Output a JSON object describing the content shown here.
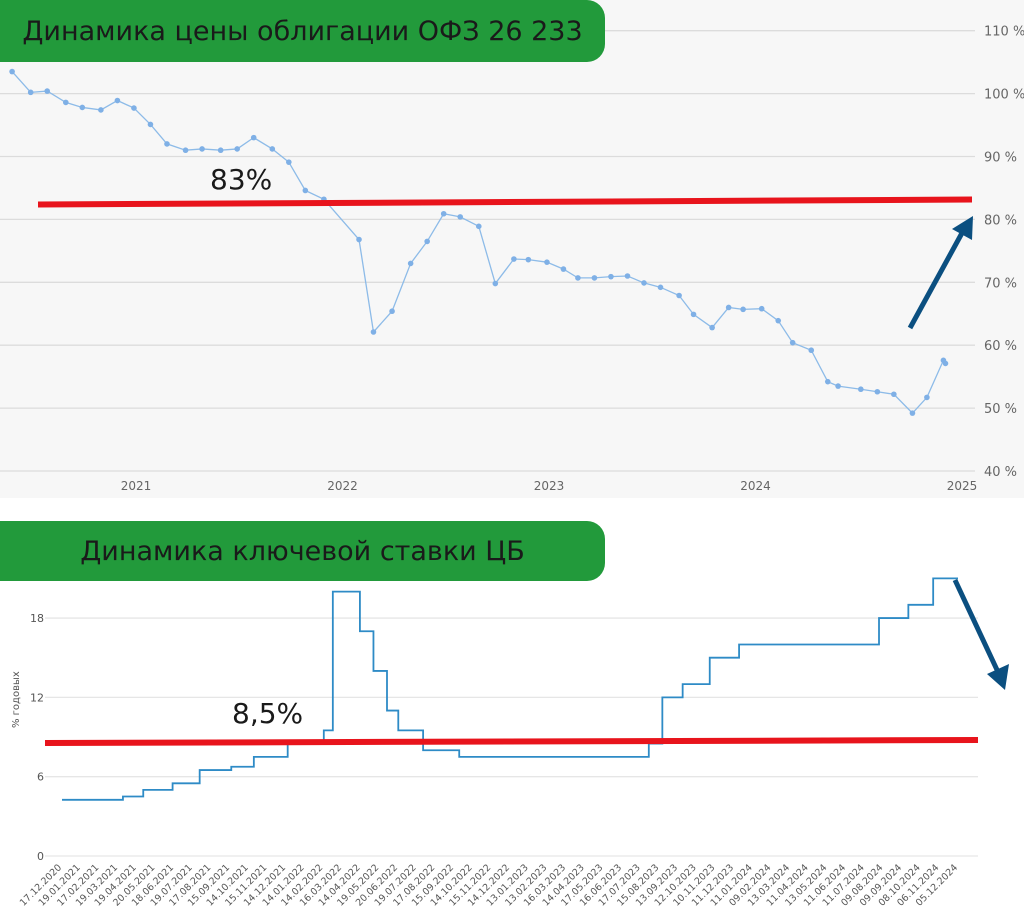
{
  "chart_data": [
    {
      "type": "line",
      "title": "Динамика цены облигации ОФЗ 26 233",
      "xlabel": "",
      "ylabel": "",
      "x_ticks": [
        "2021",
        "2022",
        "2023",
        "2024",
        "2025"
      ],
      "y_ticks": [
        "40 %",
        "50 %",
        "60 %",
        "70 %",
        "80 %",
        "90 %",
        "100 %",
        "110 %"
      ],
      "xlim": [
        2020.35,
        2025.2
      ],
      "ylim": [
        40,
        110
      ],
      "grid": true,
      "series": [
        {
          "name": "price",
          "x": [
            2020.4,
            2020.49,
            2020.57,
            2020.66,
            2020.74,
            2020.83,
            2020.91,
            2020.99,
            2021.07,
            2021.15,
            2021.24,
            2021.32,
            2021.41,
            2021.49,
            2021.57,
            2021.66,
            2021.74,
            2021.82,
            2021.91,
            2022.08,
            2022.15,
            2022.24,
            2022.33,
            2022.41,
            2022.49,
            2022.57,
            2022.66,
            2022.74,
            2022.83,
            2022.9,
            2022.99,
            2023.07,
            2023.14,
            2023.22,
            2023.3,
            2023.38,
            2023.46,
            2023.54,
            2023.63,
            2023.7,
            2023.79,
            2023.87,
            2023.94,
            2024.03,
            2024.11,
            2024.18,
            2024.27,
            2024.35,
            2024.4,
            2024.51,
            2024.59,
            2024.67,
            2024.76,
            2024.83,
            2024.91,
            2024.92
          ],
          "y": [
            103.5,
            100.2,
            100.4,
            98.6,
            97.8,
            97.4,
            98.9,
            97.7,
            95.1,
            92.0,
            91.0,
            91.2,
            91.0,
            91.2,
            93.0,
            91.2,
            89.1,
            84.6,
            83.2,
            76.8,
            62.1,
            65.4,
            73.0,
            76.5,
            80.9,
            80.4,
            78.9,
            69.8,
            73.7,
            73.6,
            73.2,
            72.1,
            70.7,
            70.7,
            70.9,
            71.0,
            69.9,
            69.2,
            67.9,
            64.9,
            62.8,
            66.0,
            65.7,
            65.8,
            63.9,
            60.4,
            59.2,
            54.2,
            53.5,
            53.0,
            52.6,
            52.2,
            49.2,
            51.7,
            57.6,
            57.1
          ],
          "color": "#8dbbe8"
        }
      ],
      "annotations": {
        "level_label": "83%",
        "level_value": 83,
        "level_color": "#e8141c",
        "arrow": "up",
        "arrow_color": "#0b4f80"
      }
    },
    {
      "type": "line",
      "title": "Динамика ключевой ставки ЦБ",
      "xlabel": "",
      "ylabel": "% годовых",
      "y_ticks": [
        "0",
        "6",
        "12",
        "18"
      ],
      "ylim": [
        0,
        21
      ],
      "x_ticks": [
        "17.12.2020",
        "19.01.2021",
        "17.02.2021",
        "19.03.2021",
        "19.04.2021",
        "20.05.2021",
        "18.06.2021",
        "19.07.2021",
        "17.08.2021",
        "15.09.2021",
        "14.10.2021",
        "15.11.2021",
        "14.12.2021",
        "14.01.2022",
        "14.02.2022",
        "16.03.2022",
        "14.04.2022",
        "19.05.2022",
        "20.06.2022",
        "19.07.2022",
        "17.08.2022",
        "15.09.2022",
        "14.10.2022",
        "15.11.2022",
        "14.12.2022",
        "13.01.2023",
        "13.02.2023",
        "16.03.2023",
        "14.04.2023",
        "17.05.2023",
        "16.06.2023",
        "17.07.2023",
        "15.08.2023",
        "13.09.2023",
        "12.10.2023",
        "10.11.2023",
        "11.12.2023",
        "11.01.2024",
        "09.02.2024",
        "13.03.2024",
        "11.04.2024",
        "13.05.2024",
        "11.06.2024",
        "11.07.2024",
        "09.08.2024",
        "09.09.2024",
        "08.10.2024",
        "06.11.2024",
        "05.12.2024"
      ],
      "xlim": [
        2020.96,
        2024.93
      ],
      "grid": true,
      "series": [
        {
          "name": "key rate",
          "step": true,
          "x": [
            2020.96,
            2021.23,
            2021.32,
            2021.45,
            2021.57,
            2021.71,
            2021.81,
            2021.96,
            2022.12,
            2022.16,
            2022.28,
            2022.34,
            2022.4,
            2022.45,
            2022.56,
            2022.72,
            2023.56,
            2023.62,
            2023.71,
            2023.83,
            2023.96,
            2024.58,
            2024.71,
            2024.82,
            2024.93
          ],
          "y": [
            4.25,
            4.5,
            5,
            5.5,
            6.5,
            6.75,
            7.5,
            8.5,
            9.5,
            20,
            17,
            14,
            11,
            9.5,
            8,
            7.5,
            8.5,
            12,
            13,
            15,
            16,
            18,
            19,
            21,
            21
          ],
          "color": "#2e8bc6"
        }
      ],
      "annotations": {
        "level_label": "8,5%",
        "level_value": 8.5,
        "level_color": "#e8141c",
        "arrow": "down",
        "arrow_color": "#0b4f80"
      }
    }
  ]
}
